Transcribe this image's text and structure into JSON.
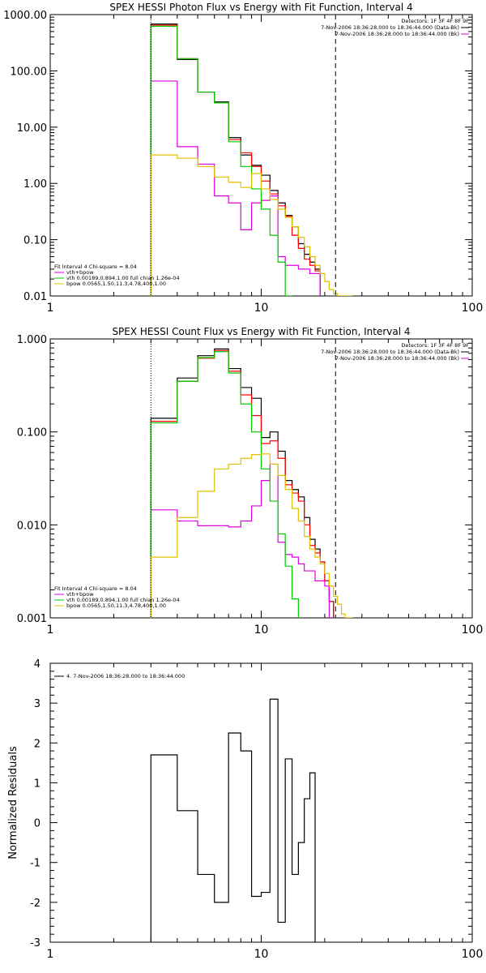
{
  "colors": {
    "data": "#000000",
    "background": "#ff0000",
    "total_fit": "#e000e0",
    "vth": "#00cc00",
    "bpow": "#e0c000"
  },
  "chart_data": [
    {
      "type": "line",
      "title": "SPEX HESSI Photon Flux vs Energy with Fit Function, Interval 4",
      "xscale": "log",
      "yscale": "log",
      "xlim": [
        1,
        100
      ],
      "ylim": [
        0.01,
        1000
      ],
      "xticks": [
        "1",
        "10",
        "100"
      ],
      "yticks": [
        "0.01",
        "0.10",
        "1.00",
        "10.00",
        "100.00",
        "1000.00"
      ],
      "legend_right": {
        "position": "top-right",
        "lines": [
          "Detectors: 1F 3F 4F 8F 9F",
          "7-Nov-2006 18:36:28.000 to 18:36:44.000 (Data-Bk)",
          "7-Nov-2006 18:36:28.000 to 18:36:44.000 (Bk)"
        ]
      },
      "legend_left": {
        "position": "bottom-left",
        "lines": [
          "Fit Interval 4   Chi-square = 8.04",
          "vth+bpow",
          "vth 0.00189,0.894,1.00  full chian 1.26e-04",
          "bpow 0.0565,1.50,11.3,4.78,400,1.00"
        ]
      },
      "edges": [
        3,
        4,
        5,
        6,
        7,
        8,
        9,
        10,
        11,
        12,
        13,
        14,
        15,
        16,
        17,
        18,
        19,
        20,
        21,
        22,
        23,
        24,
        25,
        26,
        27
      ],
      "series": [
        {
          "key": "data",
          "values": [
            680,
            160,
            42,
            28,
            6.5,
            3.2,
            2.1,
            1.4,
            0.75,
            0.45,
            0.27,
            0.17,
            0.085,
            0.055,
            0.04,
            0.03,
            null,
            null,
            null,
            null,
            null,
            null,
            null,
            null
          ]
        },
        {
          "key": "background",
          "values": [
            650,
            165,
            42,
            27,
            6,
            3.5,
            2,
            1.1,
            0.65,
            0.4,
            0.26,
            0.12,
            0.07,
            0.045,
            0.035,
            0.028,
            null,
            null,
            null,
            null,
            null,
            null,
            null,
            null
          ]
        },
        {
          "key": "total_fit",
          "values": [
            66,
            4.5,
            2.2,
            0.6,
            0.45,
            0.15,
            0.45,
            0.5,
            0.6,
            0.05,
            0.035,
            0.035,
            0.03,
            0.03,
            0.025,
            0.025,
            null,
            null,
            null,
            null,
            null,
            null,
            null,
            null
          ]
        },
        {
          "key": "vth",
          "values": [
            620,
            165,
            42,
            27,
            5.5,
            2,
            0.8,
            0.35,
            0.12,
            0.04,
            0.01,
            null,
            null,
            null,
            null,
            null,
            null,
            null,
            null,
            null,
            null,
            null,
            null,
            null
          ]
        },
        {
          "key": "bpow",
          "values": [
            3.2,
            2.8,
            2.0,
            1.3,
            1.05,
            0.85,
            1.5,
            0.8,
            0.52,
            0.35,
            0.25,
            0.17,
            0.11,
            0.075,
            0.05,
            0.035,
            0.025,
            0.018,
            0.013,
            0.011,
            0.01,
            0.01,
            0.01,
            0.01
          ]
        }
      ],
      "markers": {
        "dotted_x": 3,
        "dashed_x": 22.5
      }
    },
    {
      "type": "line",
      "title": "SPEX HESSI Count Flux vs Energy with Fit Function, Interval 4",
      "xscale": "log",
      "yscale": "log",
      "xlim": [
        1,
        100
      ],
      "ylim": [
        0.001,
        1
      ],
      "xticks": [
        "1",
        "10",
        "100"
      ],
      "yticks": [
        "0.001",
        "0.010",
        "0.100",
        "1.000"
      ],
      "legend_right": {
        "position": "top-right",
        "lines": [
          "Detectors: 1F 3F 4F 8F 9F",
          "7-Nov-2006 18:36:28.000 to 18:36:44.000 (Data-Bk)",
          "7-Nov-2006 18:36:28.000 to 18:36:44.000 (Bk)"
        ]
      },
      "legend_left": {
        "position": "bottom-left",
        "lines": [
          "Fit Interval 4   Chi-square = 8.04",
          "vth+bpow",
          "vth 0.00189,0.894,1.00  full chian 1.26e-04",
          "bpow 0.0565,1.50,11.3,4.78,400,1.00"
        ]
      },
      "edges": [
        3,
        4,
        5,
        6,
        7,
        8,
        9,
        10,
        11,
        12,
        13,
        14,
        15,
        16,
        17,
        18,
        19,
        20,
        21,
        22,
        23,
        24,
        25,
        26,
        27
      ],
      "series": [
        {
          "key": "data",
          "values": [
            0.14,
            0.38,
            0.66,
            0.78,
            0.48,
            0.3,
            0.23,
            0.087,
            0.1,
            0.062,
            0.03,
            0.024,
            0.02,
            0.012,
            0.007,
            0.0055,
            0.004,
            0.0025,
            0.0015,
            null,
            null,
            null,
            null,
            null
          ]
        },
        {
          "key": "background",
          "values": [
            0.13,
            0.35,
            0.62,
            0.75,
            0.45,
            0.25,
            0.15,
            0.075,
            0.08,
            0.052,
            0.027,
            0.022,
            0.018,
            0.01,
            0.006,
            0.005,
            0.004,
            0.0025,
            0.0015,
            null,
            null,
            null,
            null,
            null
          ]
        },
        {
          "key": "total_fit",
          "values": [
            0.0145,
            0.011,
            0.0098,
            0.0098,
            0.0095,
            0.011,
            0.016,
            0.03,
            0.045,
            0.0065,
            0.0048,
            0.0045,
            0.0038,
            0.0032,
            0.0032,
            0.0025,
            0.0025,
            0.0022,
            null,
            null,
            null,
            null,
            null,
            null
          ]
        },
        {
          "key": "vth",
          "values": [
            0.125,
            0.35,
            0.63,
            0.73,
            0.43,
            0.2,
            0.1,
            0.04,
            0.018,
            0.008,
            0.0036,
            0.0016,
            null,
            null,
            null,
            null,
            null,
            null,
            null,
            null,
            null,
            null,
            null,
            null
          ]
        },
        {
          "key": "bpow",
          "values": [
            0.0045,
            0.012,
            0.023,
            0.04,
            0.045,
            0.052,
            0.057,
            0.058,
            0.045,
            0.034,
            0.024,
            0.015,
            0.011,
            0.0075,
            0.0055,
            0.0045,
            0.0038,
            0.003,
            0.0022,
            0.0017,
            0.0014,
            0.0011,
            0.001,
            0.001
          ]
        }
      ],
      "markers": {
        "dotted_x": 3,
        "dashed_x": 22.5
      }
    },
    {
      "type": "line",
      "title": "",
      "xscale": "log",
      "yscale": "linear",
      "xlim": [
        1,
        100
      ],
      "ylim": [
        -3,
        4
      ],
      "ylabel": "Normalized Residuals",
      "xticks": [
        "1",
        "10",
        "100"
      ],
      "yticks": [
        "-3",
        "-2",
        "-1",
        "0",
        "1",
        "2",
        "3",
        "4"
      ],
      "legend_left": {
        "position": "top-left",
        "lines": [
          "4.  7-Nov-2006 18:36:28.000 to 18:36:44.000"
        ]
      },
      "edges": [
        3,
        4,
        5,
        6,
        7,
        8,
        9,
        10,
        11,
        12,
        13,
        14,
        15,
        16,
        17,
        18,
        19,
        20,
        21,
        22
      ],
      "series": [
        {
          "key": "data",
          "values": [
            1.7,
            0.3,
            -1.3,
            -2.0,
            2.25,
            1.8,
            -1.85,
            -1.75,
            3.1,
            -2.5,
            1.6,
            -1.3,
            -0.5,
            0.6,
            1.25
          ]
        }
      ]
    }
  ]
}
